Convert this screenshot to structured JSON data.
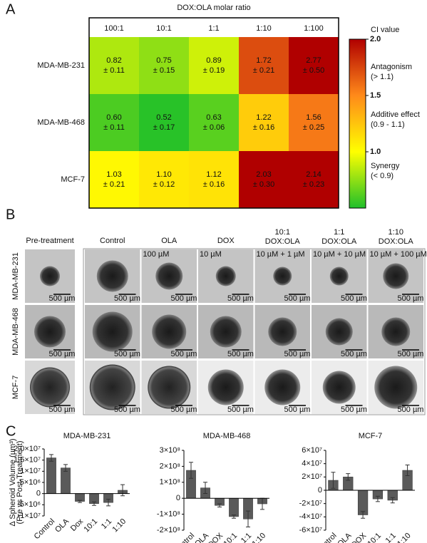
{
  "panel_labels": [
    "A",
    "B",
    "C"
  ],
  "panel_b": {
    "columns": [
      [
        "Pre-treatment"
      ],
      [
        "Control"
      ],
      [
        "OLA"
      ],
      [
        "DOX"
      ],
      [
        "10:1",
        "DOX:OLA"
      ],
      [
        "1:1",
        "DOX:OLA"
      ],
      [
        "1:10",
        "DOX:OLA"
      ]
    ],
    "rows": [
      "MDA-MB-231",
      "MDA-MB-468",
      "MCF-7"
    ],
    "doses": [
      "100 µM",
      "10 µM",
      "10 µM + 1 µM",
      "10 µM + 10 µM",
      "10 µM + 100 µM"
    ],
    "scale_bar": "500 µm"
  },
  "chart_data": [
    {
      "type": "heatmap",
      "title": "DOX:OLA molar ratio",
      "x_categories": [
        "100:1",
        "10:1",
        "1:1",
        "1:10",
        "1:100"
      ],
      "y_categories": [
        "MDA-MB-231",
        "MDA-MB-468",
        "MCF-7"
      ],
      "values": [
        [
          0.82,
          0.75,
          0.89,
          1.72,
          2.77
        ],
        [
          0.6,
          0.52,
          0.63,
          1.22,
          1.56
        ],
        [
          1.03,
          1.1,
          1.12,
          2.03,
          2.14
        ]
      ],
      "value_labels": [
        [
          "0.82",
          "0.75",
          "0.89",
          "1.72",
          "2.77"
        ],
        [
          "0.60",
          "0.52",
          "0.63",
          "1.22",
          "1.56"
        ],
        [
          "1.03",
          "1.10",
          "1.12",
          "2.03",
          "2.14"
        ]
      ],
      "error_labels": [
        [
          "± 0.11",
          "± 0.15",
          "± 0.19",
          "± 0.21",
          "± 0.50"
        ],
        [
          "± 0.11",
          "± 0.17",
          "± 0.06",
          "± 0.16",
          "± 0.25"
        ],
        [
          "± 0.21",
          "± 0.12",
          "± 0.16",
          "± 0.30",
          "± 0.23"
        ]
      ],
      "colorbar": {
        "title": "CI value",
        "lim": [
          0.5,
          2.0
        ],
        "ticks": [
          {
            "value": 2,
            "label": "2.0"
          },
          {
            "value": 1.5,
            "label": "1.5"
          },
          {
            "value": 1,
            "label": "1.0"
          }
        ],
        "colorscale": [
          [
            0.5,
            "#1fbf2a"
          ],
          [
            1.0,
            "#ffff00"
          ],
          [
            1.5,
            "#ff8a1a"
          ],
          [
            2.0,
            "#b00000"
          ]
        ]
      },
      "annotations": [
        "Antagonism",
        "(> 1.1)",
        "Additive effect",
        "(0.9 - 1.1)",
        "Synergy",
        "(< 0.9)"
      ]
    },
    {
      "type": "bar",
      "title": "MDA-MB-231",
      "y_label": [
        "Δ Spheroid Volume (µm³)",
        "(Pre vs Post-Treatment)"
      ],
      "categories": [
        "Control",
        "OLA",
        "Dox",
        "10:1",
        "1:1",
        "1:10"
      ],
      "values": [
        16000000,
        11500000,
        -3500000,
        -4500000,
        -4000000,
        1500000
      ],
      "errors": [
        1500000,
        1500000,
        500000,
        800000,
        1500000,
        2500000
      ],
      "color": "#5a5a5a",
      "ylim": [
        -10000000,
        20000000
      ],
      "yticks": [
        {
          "value": 20000000,
          "label": "2.0×10⁷"
        },
        {
          "value": 15000000,
          "label": "1.5×10⁷"
        },
        {
          "value": 10000000,
          "label": "1×10⁷"
        },
        {
          "value": 5000000,
          "label": "5×10⁶"
        },
        0,
        {
          "value": -5000000,
          "label": "-5×10⁶"
        },
        {
          "value": -10000000,
          "label": "-1×10⁷"
        }
      ]
    },
    {
      "type": "bar",
      "title": "MDA-MB-468",
      "categories": [
        "Control",
        "OLA",
        "DOX",
        "10:1",
        "1:1",
        "1:10"
      ],
      "values": [
        175000000,
        65000000,
        -45000000,
        -115000000,
        -130000000,
        -35000000
      ],
      "errors": [
        50000000,
        35000000,
        10000000,
        10000000,
        50000000,
        35000000
      ],
      "color": "#5a5a5a",
      "ylim": [
        -200000000,
        300000000
      ],
      "yticks": [
        {
          "value": 300000000,
          "label": "3×10⁸"
        },
        {
          "value": 200000000,
          "label": "2×10⁸"
        },
        {
          "value": 100000000,
          "label": "1×10⁸"
        },
        0,
        {
          "value": -100000000,
          "label": "-1×10⁸"
        },
        {
          "value": -200000000,
          "label": "-2×10⁸"
        }
      ]
    },
    {
      "type": "bar",
      "title": "MCF-7",
      "categories": [
        "Control",
        "OLA",
        "DOX",
        "10:1",
        "1:1",
        "1:10"
      ],
      "values": [
        15000000,
        20000000,
        -37000000,
        -13000000,
        -15000000,
        30000000
      ],
      "errors": [
        12000000,
        5000000,
        5000000,
        4000000,
        4000000,
        8000000
      ],
      "color": "#5a5a5a",
      "ylim": [
        -60000000,
        60000000
      ],
      "yticks": [
        {
          "value": 60000000,
          "label": "6×10⁷"
        },
        {
          "value": 40000000,
          "label": "4×10⁷"
        },
        {
          "value": 20000000,
          "label": "2×10⁷"
        },
        0,
        {
          "value": -20000000,
          "label": "-2×10⁷"
        },
        {
          "value": -40000000,
          "label": "-4×10⁷"
        },
        {
          "value": -60000000,
          "label": "-6×10⁷"
        }
      ]
    }
  ]
}
